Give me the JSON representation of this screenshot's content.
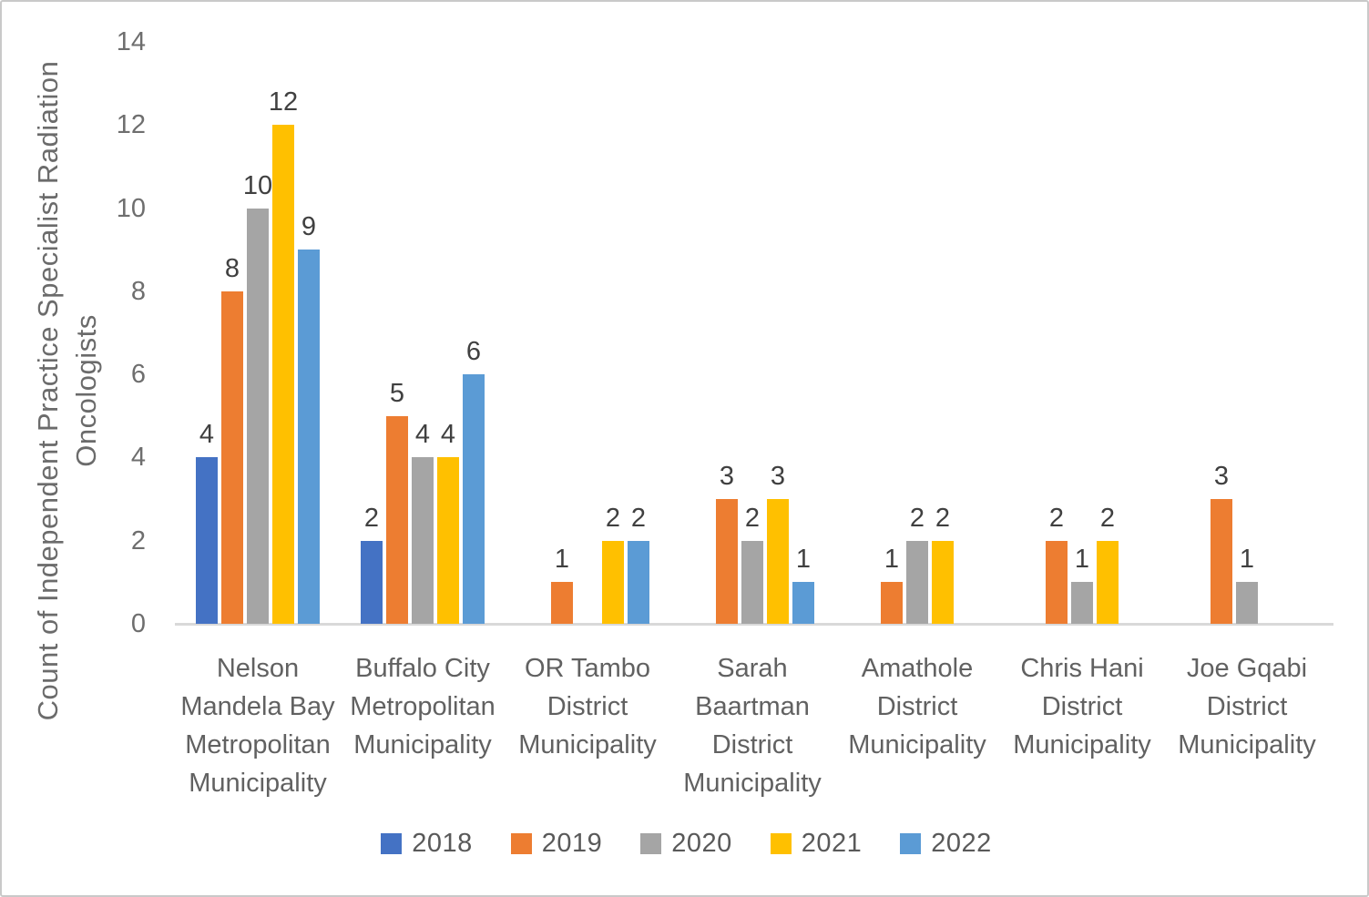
{
  "chart_data": {
    "type": "bar",
    "title": "",
    "xlabel": "",
    "ylabel": "Count of Independent Practice Specialist Radiation Oncologists",
    "ylim": [
      0,
      14
    ],
    "yticks": [
      0,
      2,
      4,
      6,
      8,
      10,
      12,
      14
    ],
    "grid": false,
    "legend_position": "bottom",
    "data_labels": true,
    "categories": [
      "Nelson Mandela Bay Metropolitan Municipality",
      "Buffalo City Metropolitan Municipality",
      "OR Tambo District Municipality",
      "Sarah Baartman District Municipality",
      "Amathole District Municipality",
      "Chris Hani District Municipality",
      "Joe Gqabi District Municipality"
    ],
    "category_lines": [
      [
        "Nelson",
        "Mandela Bay",
        "Metropolitan",
        "Municipality"
      ],
      [
        "Buffalo City",
        "Metropolitan",
        "Municipality"
      ],
      [
        "OR Tambo",
        "District",
        "Municipality"
      ],
      [
        "Sarah",
        "Baartman",
        "District",
        "Municipality"
      ],
      [
        "Amathole",
        "District",
        "Municipality"
      ],
      [
        "Chris Hani",
        "District",
        "Municipality"
      ],
      [
        "Joe Gqabi",
        "District",
        "Municipality"
      ]
    ],
    "series": [
      {
        "name": "2018",
        "color": "#4472C4",
        "values": [
          4,
          2,
          0,
          0,
          0,
          0,
          0
        ]
      },
      {
        "name": "2019",
        "color": "#ED7D31",
        "values": [
          8,
          5,
          1,
          3,
          1,
          2,
          3
        ]
      },
      {
        "name": "2020",
        "color": "#A5A5A5",
        "values": [
          10,
          4,
          0,
          2,
          2,
          1,
          1
        ]
      },
      {
        "name": "2021",
        "color": "#FFC000",
        "values": [
          12,
          4,
          2,
          3,
          2,
          2,
          0
        ]
      },
      {
        "name": "2022",
        "color": "#5B9BD5",
        "values": [
          9,
          6,
          2,
          1,
          0,
          0,
          0
        ]
      }
    ]
  },
  "colors": {
    "axis_line": "#D9D9D9",
    "tick_text": "#6E6E6E",
    "category_text": "#616161",
    "data_label_text": "#404040",
    "legend_text": "#595959"
  }
}
